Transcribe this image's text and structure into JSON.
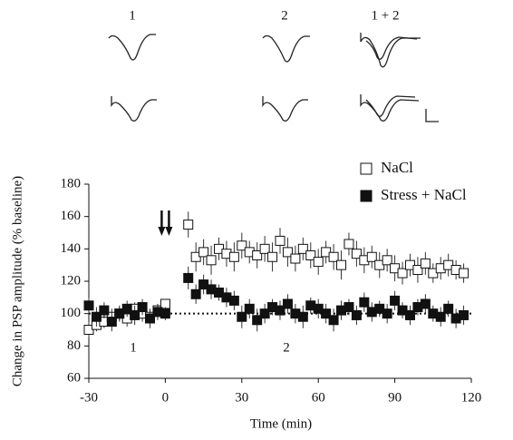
{
  "chart_data": {
    "type": "scatter",
    "inset_labels": [
      "1",
      "2",
      "1 + 2"
    ],
    "annotations": [
      "1",
      "2"
    ],
    "xlabel": "Time (min)",
    "ylabel": "Change in PSP amplitude (% baseline)",
    "xlim": [
      -30,
      120
    ],
    "xticks": [
      -30,
      0,
      30,
      60,
      90,
      120
    ],
    "ylim": [
      60,
      180
    ],
    "yticks": [
      60,
      80,
      100,
      120,
      140,
      160,
      180
    ],
    "baseline": 100,
    "stimulus_x": 0,
    "legend": "top-right",
    "x": [
      -30,
      -27,
      -24,
      -21,
      -18,
      -15,
      -12,
      -9,
      -6,
      -3,
      0,
      9,
      12,
      15,
      18,
      21,
      24,
      27,
      30,
      33,
      36,
      39,
      42,
      45,
      48,
      51,
      54,
      57,
      60,
      63,
      66,
      69,
      72,
      75,
      78,
      81,
      84,
      87,
      90,
      93,
      96,
      99,
      102,
      105,
      108,
      111,
      114,
      117
    ],
    "series": [
      {
        "name": "NaCl",
        "color": "#ffffff",
        "values": [
          90,
          93,
          95,
          98,
          100,
          97,
          103,
          100,
          98,
          102,
          106,
          155,
          135,
          138,
          133,
          140,
          137,
          135,
          142,
          138,
          136,
          140,
          135,
          145,
          138,
          134,
          140,
          136,
          132,
          138,
          135,
          130,
          143,
          137,
          133,
          135,
          130,
          133,
          128,
          125,
          130,
          127,
          131,
          125,
          128,
          130,
          127,
          125
        ],
        "errors": [
          5,
          4,
          4,
          5,
          4,
          5,
          4,
          5,
          4,
          4,
          3,
          8,
          9,
          8,
          9,
          7,
          8,
          9,
          8,
          7,
          8,
          8,
          9,
          8,
          9,
          8,
          7,
          8,
          8,
          7,
          8,
          9,
          7,
          8,
          8,
          7,
          8,
          7,
          8,
          7,
          7,
          8,
          7,
          6,
          7,
          7,
          6,
          6
        ]
      },
      {
        "name": "Stress + NaCl",
        "color": "#111111",
        "values": [
          105,
          98,
          102,
          95,
          100,
          103,
          99,
          104,
          97,
          101,
          100,
          122,
          112,
          118,
          115,
          113,
          110,
          108,
          98,
          103,
          96,
          100,
          104,
          102,
          106,
          100,
          98,
          105,
          103,
          100,
          96,
          102,
          104,
          99,
          107,
          101,
          103,
          100,
          108,
          102,
          99,
          104,
          106,
          100,
          98,
          103,
          97,
          99
        ],
        "errors": [
          5,
          6,
          5,
          6,
          5,
          5,
          6,
          5,
          6,
          5,
          4,
          7,
          6,
          6,
          6,
          5,
          6,
          6,
          7,
          6,
          7,
          6,
          5,
          6,
          6,
          6,
          7,
          5,
          6,
          6,
          7,
          6,
          5,
          6,
          6,
          6,
          5,
          6,
          6,
          5,
          6,
          5,
          6,
          5,
          6,
          5,
          6,
          6
        ]
      }
    ]
  }
}
